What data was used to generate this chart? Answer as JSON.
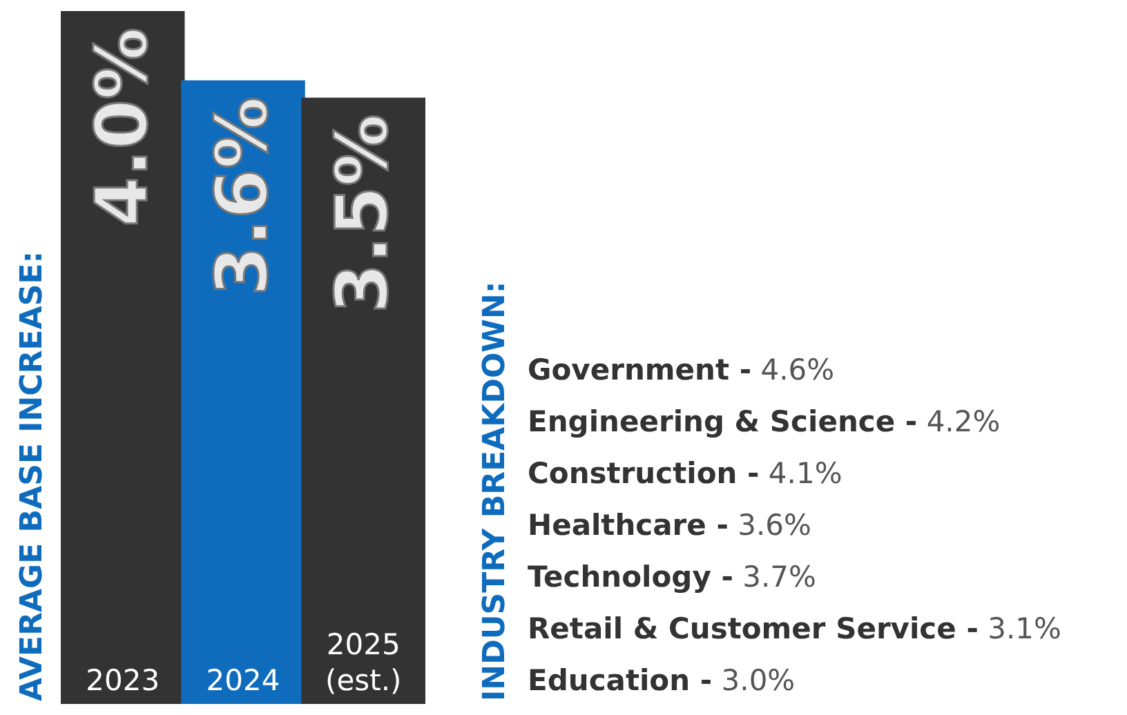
{
  "chart_data": [
    {
      "type": "bar",
      "ylabel": "AVERAGE BASE INCREASE:",
      "categories": [
        "2023",
        "2024",
        "2025 (est.)"
      ],
      "values": [
        4.0,
        3.6,
        3.5
      ],
      "colors": [
        "#333333",
        "#0f6cbd",
        "#333333"
      ],
      "value_labels": [
        "4.0%",
        "3.6%",
        "3.5%"
      ],
      "ylim": [
        0,
        4.0
      ]
    },
    {
      "type": "other",
      "title": "INDUSTRY BREAKDOWN:",
      "annotations": [
        "Government - 4.6%",
        "Engineering & Science - 4.2%",
        "Construction - 4.1%",
        "Healthcare - 3.6%",
        "Technology - 3.7%",
        "Retail & Customer Service - 3.1%",
        "Education - 3.0%"
      ]
    }
  ]
}
